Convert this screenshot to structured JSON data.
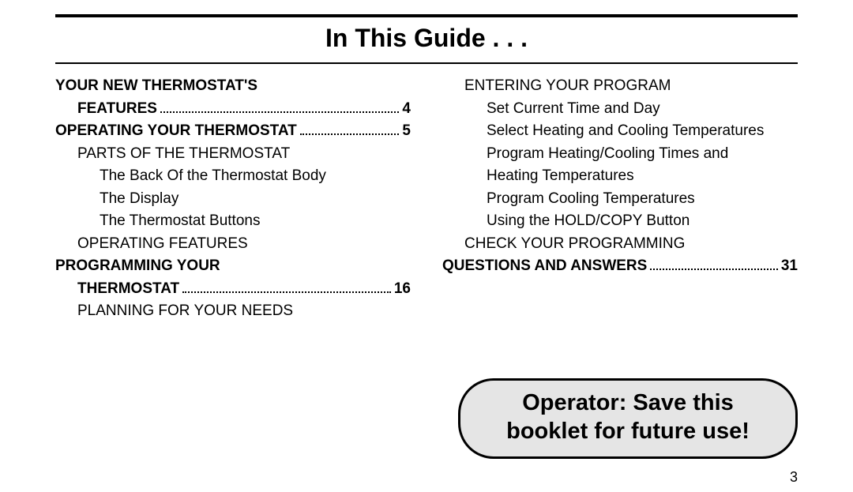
{
  "title": "In This Guide . . .",
  "left": [
    {
      "label": "YOUR NEW THERMOSTAT'S",
      "text_class": "bold",
      "indent": 0
    },
    {
      "label": "FEATURES",
      "page": "4",
      "text_class": "bold",
      "indent": 1,
      "dots": true
    },
    {
      "label": "OPERATING YOUR THERMOSTAT",
      "page": "5",
      "text_class": "bold",
      "indent": 0,
      "dots": true
    },
    {
      "label": "PARTS OF THE THERMOSTAT",
      "indent": 1
    },
    {
      "label": "The Back Of the Thermostat Body",
      "indent": 2
    },
    {
      "label": "The Display",
      "indent": 2
    },
    {
      "label": "The Thermostat Buttons",
      "indent": 2
    },
    {
      "label": "OPERATING FEATURES",
      "indent": 1
    },
    {
      "label": "PROGRAMMING YOUR",
      "text_class": "bold",
      "indent": 0
    },
    {
      "label": "THERMOSTAT",
      "page": "16",
      "text_class": "bold",
      "indent": 1,
      "dots": true
    },
    {
      "label": "PLANNING FOR YOUR NEEDS",
      "indent": 1
    }
  ],
  "right": [
    {
      "label": "ENTERING YOUR PROGRAM",
      "indent": 1
    },
    {
      "label": "Set Current Time and Day",
      "indent": 2
    },
    {
      "label": "Select Heating and Cooling Temperatures",
      "indent": 2
    },
    {
      "label": "Program Heating/Cooling Times and",
      "indent": 2
    },
    {
      "label": "   Heating Temperatures",
      "indent": 2
    },
    {
      "label": "Program Cooling Temperatures",
      "indent": 2
    },
    {
      "label": "Using the HOLD/COPY Button",
      "indent": 2
    },
    {
      "label": "CHECK YOUR PROGRAMMING",
      "indent": 1
    },
    {
      "label": "QUESTIONS AND ANSWERS",
      "page": "31",
      "text_class": "bold",
      "indent": 0,
      "dots": true
    }
  ],
  "callout": "Operator: Save this booklet for future use!",
  "pagenum": "3"
}
